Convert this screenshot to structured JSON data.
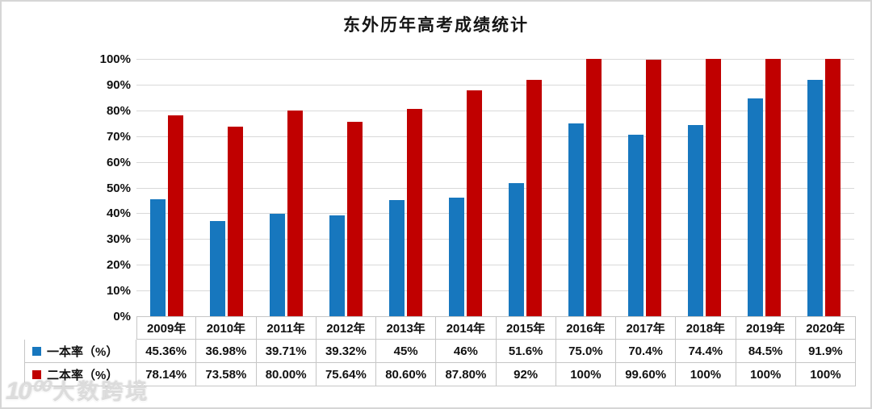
{
  "title": "东外历年高考成绩统计",
  "watermark": {
    "logo": "10⁰⁰",
    "brand": "大数跨境"
  },
  "chart_data": {
    "type": "bar",
    "title": "东外历年高考成绩统计",
    "categories": [
      "2009年",
      "2010年",
      "2011年",
      "2012年",
      "2013年",
      "2014年",
      "2015年",
      "2016年",
      "2017年",
      "2018年",
      "2019年",
      "2020年"
    ],
    "series": [
      {
        "name": "一本率（%）",
        "color": "#1777be",
        "values": [
          45.36,
          36.98,
          39.71,
          39.32,
          45,
          46,
          51.6,
          75.0,
          70.4,
          74.4,
          84.5,
          91.9
        ],
        "display_values": [
          "45.36%",
          "36.98%",
          "39.71%",
          "39.32%",
          "45%",
          "46%",
          "51.6%",
          "75.0%",
          "70.4%",
          "74.4%",
          "84.5%",
          "91.9%"
        ]
      },
      {
        "name": "二本率（%）",
        "color": "#c00000",
        "values": [
          78.14,
          73.58,
          80.0,
          75.64,
          80.6,
          87.8,
          92,
          100,
          99.6,
          100,
          100,
          100
        ],
        "display_values": [
          "78.14%",
          "73.58%",
          "80.00%",
          "75.64%",
          "80.60%",
          "87.80%",
          "92%",
          "100%",
          "99.60%",
          "100%",
          "100%",
          "100%"
        ]
      }
    ],
    "xlabel": "",
    "ylabel": "",
    "ylim": [
      0,
      100
    ],
    "y_ticks": [
      "100%",
      "90%",
      "80%",
      "70%",
      "60%",
      "50%",
      "40%",
      "30%",
      "20%",
      "10%",
      "0%"
    ],
    "grid": true,
    "gridline_color": "#d9d9d9",
    "table_border_color": "#c6c6c6",
    "legend_position": "data-table-left"
  }
}
